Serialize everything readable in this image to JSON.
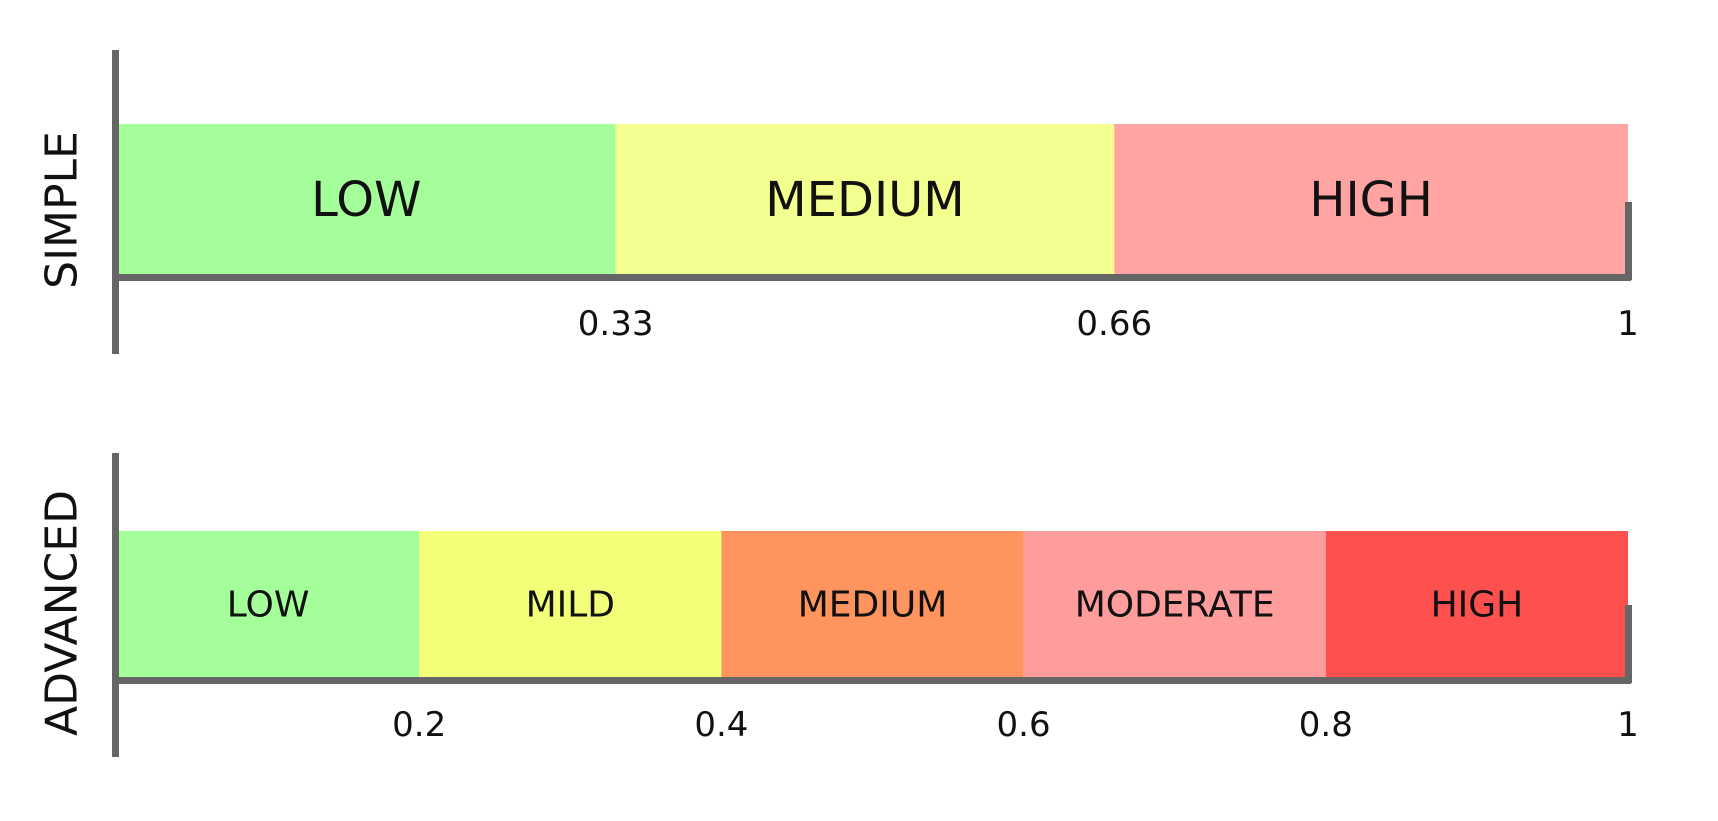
{
  "scales": [
    {
      "title": "SIMPLE",
      "bands": [
        {
          "label": "LOW",
          "from": 0,
          "to": 0.33,
          "color": "#a4ff9b"
        },
        {
          "label": "MEDIUM",
          "from": 0.33,
          "to": 0.66,
          "color": "#f3ff8f"
        },
        {
          "label": "HIGH",
          "from": 0.66,
          "to": 1,
          "color": "#ffa3a3"
        }
      ],
      "ticks": [
        "0.33",
        "0.66",
        "1"
      ]
    },
    {
      "title": "ADVANCED",
      "bands": [
        {
          "label": "LOW",
          "from": 0,
          "to": 0.2,
          "color": "#a4ff9b"
        },
        {
          "label": "MILD",
          "from": 0.2,
          "to": 0.4,
          "color": "#f3ff79"
        },
        {
          "label": "MEDIUM",
          "from": 0.4,
          "to": 0.6,
          "color": "#ff945f"
        },
        {
          "label": "MODERATE",
          "from": 0.6,
          "to": 0.8,
          "color": "#ff9c9c"
        },
        {
          "label": "HIGH",
          "from": 0.8,
          "to": 1,
          "color": "#ff5050"
        }
      ],
      "ticks": [
        "0.2",
        "0.4",
        "0.6",
        "0.8",
        "1"
      ]
    }
  ],
  "colors": {
    "axis": "#666666",
    "text": "#111111"
  }
}
